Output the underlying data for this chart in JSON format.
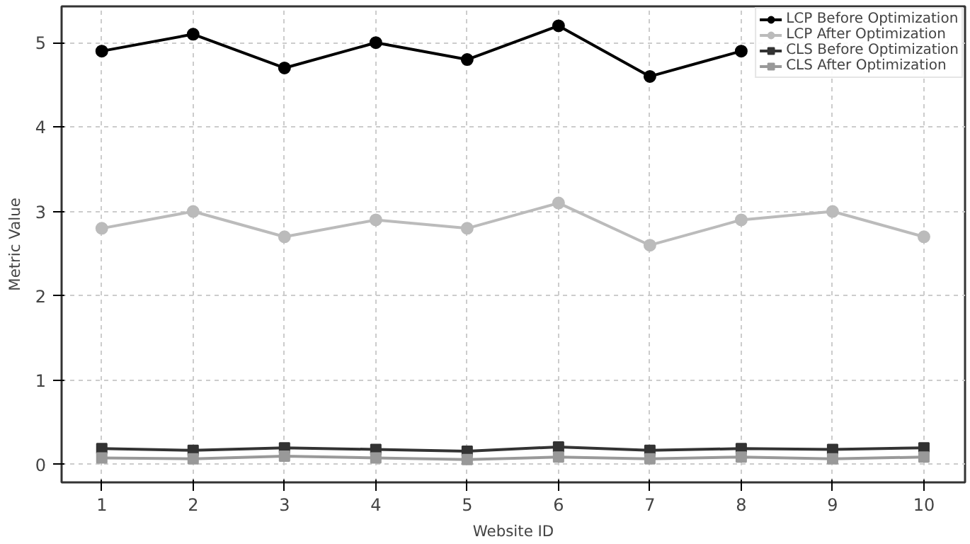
{
  "chart_data": {
    "type": "line",
    "xlabel": "Website ID",
    "ylabel": "Metric Value",
    "x": [
      1,
      2,
      3,
      4,
      5,
      6,
      7,
      8,
      9,
      10
    ],
    "xlim": [
      0.56,
      10.45
    ],
    "xticks": [
      1,
      2,
      3,
      4,
      5,
      6,
      7,
      8,
      9,
      10
    ],
    "ylim": [
      -0.21,
      5.43
    ],
    "yticks": [
      0,
      1,
      2,
      3,
      4,
      5
    ],
    "grid": true,
    "legend": "top right",
    "line_style": "solid",
    "series": [
      {
        "name": "LCP Before Optimization",
        "color": "#000000",
        "marker": "circle",
        "values": [
          4.9,
          5.1,
          4.7,
          5.0,
          4.8,
          5.2,
          4.6,
          4.9,
          null,
          null
        ]
      },
      {
        "name": "LCP After Optimization",
        "color": "#bbbbbb",
        "marker": "circle",
        "values": [
          2.8,
          3.0,
          2.7,
          2.9,
          2.8,
          3.1,
          2.6,
          2.9,
          3.0,
          2.7
        ]
      },
      {
        "name": "CLS Before Optimization",
        "color": "#333333",
        "marker": "square",
        "values": [
          0.19,
          0.17,
          0.2,
          0.18,
          0.16,
          0.21,
          0.17,
          0.19,
          0.18,
          0.2
        ]
      },
      {
        "name": "CLS After Optimization",
        "color": "#999999",
        "marker": "square",
        "values": [
          0.08,
          0.07,
          0.1,
          0.08,
          0.06,
          0.09,
          0.07,
          0.09,
          0.07,
          0.09
        ]
      }
    ]
  }
}
